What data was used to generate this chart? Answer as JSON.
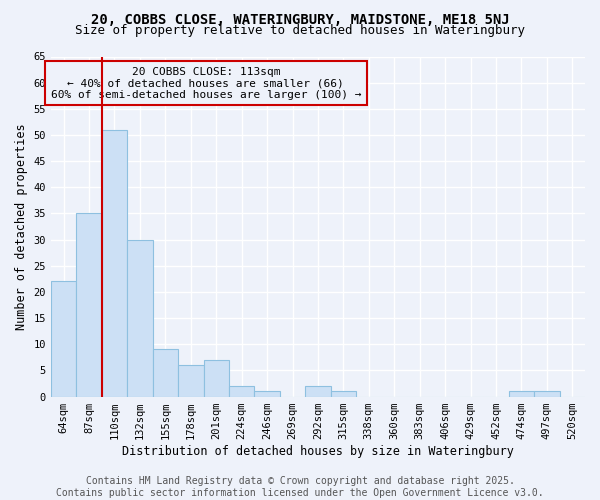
{
  "title1": "20, COBBS CLOSE, WATERINGBURY, MAIDSTONE, ME18 5NJ",
  "title2": "Size of property relative to detached houses in Wateringbury",
  "xlabel": "Distribution of detached houses by size in Wateringbury",
  "ylabel": "Number of detached properties",
  "categories": [
    "64sqm",
    "87sqm",
    "110sqm",
    "132sqm",
    "155sqm",
    "178sqm",
    "201sqm",
    "224sqm",
    "246sqm",
    "269sqm",
    "292sqm",
    "315sqm",
    "338sqm",
    "360sqm",
    "383sqm",
    "406sqm",
    "429sqm",
    "452sqm",
    "474sqm",
    "497sqm",
    "520sqm"
  ],
  "values": [
    22,
    35,
    51,
    30,
    9,
    6,
    7,
    2,
    1,
    0,
    2,
    1,
    0,
    0,
    0,
    0,
    0,
    0,
    1,
    1,
    0
  ],
  "bar_color": "#cce0f5",
  "bar_edge_color": "#8ec0e0",
  "vline_color": "#cc0000",
  "annotation_text": "20 COBBS CLOSE: 113sqm\n← 40% of detached houses are smaller (66)\n60% of semi-detached houses are larger (100) →",
  "annotation_box_edgecolor": "#cc0000",
  "ylim": [
    0,
    65
  ],
  "yticks": [
    0,
    5,
    10,
    15,
    20,
    25,
    30,
    35,
    40,
    45,
    50,
    55,
    60,
    65
  ],
  "background_color": "#eef2fa",
  "grid_color": "#ffffff",
  "footer": "Contains HM Land Registry data © Crown copyright and database right 2025.\nContains public sector information licensed under the Open Government Licence v3.0.",
  "title_fontsize": 10,
  "subtitle_fontsize": 9,
  "axis_label_fontsize": 8.5,
  "tick_fontsize": 7.5,
  "annotation_fontsize": 8,
  "footer_fontsize": 7
}
